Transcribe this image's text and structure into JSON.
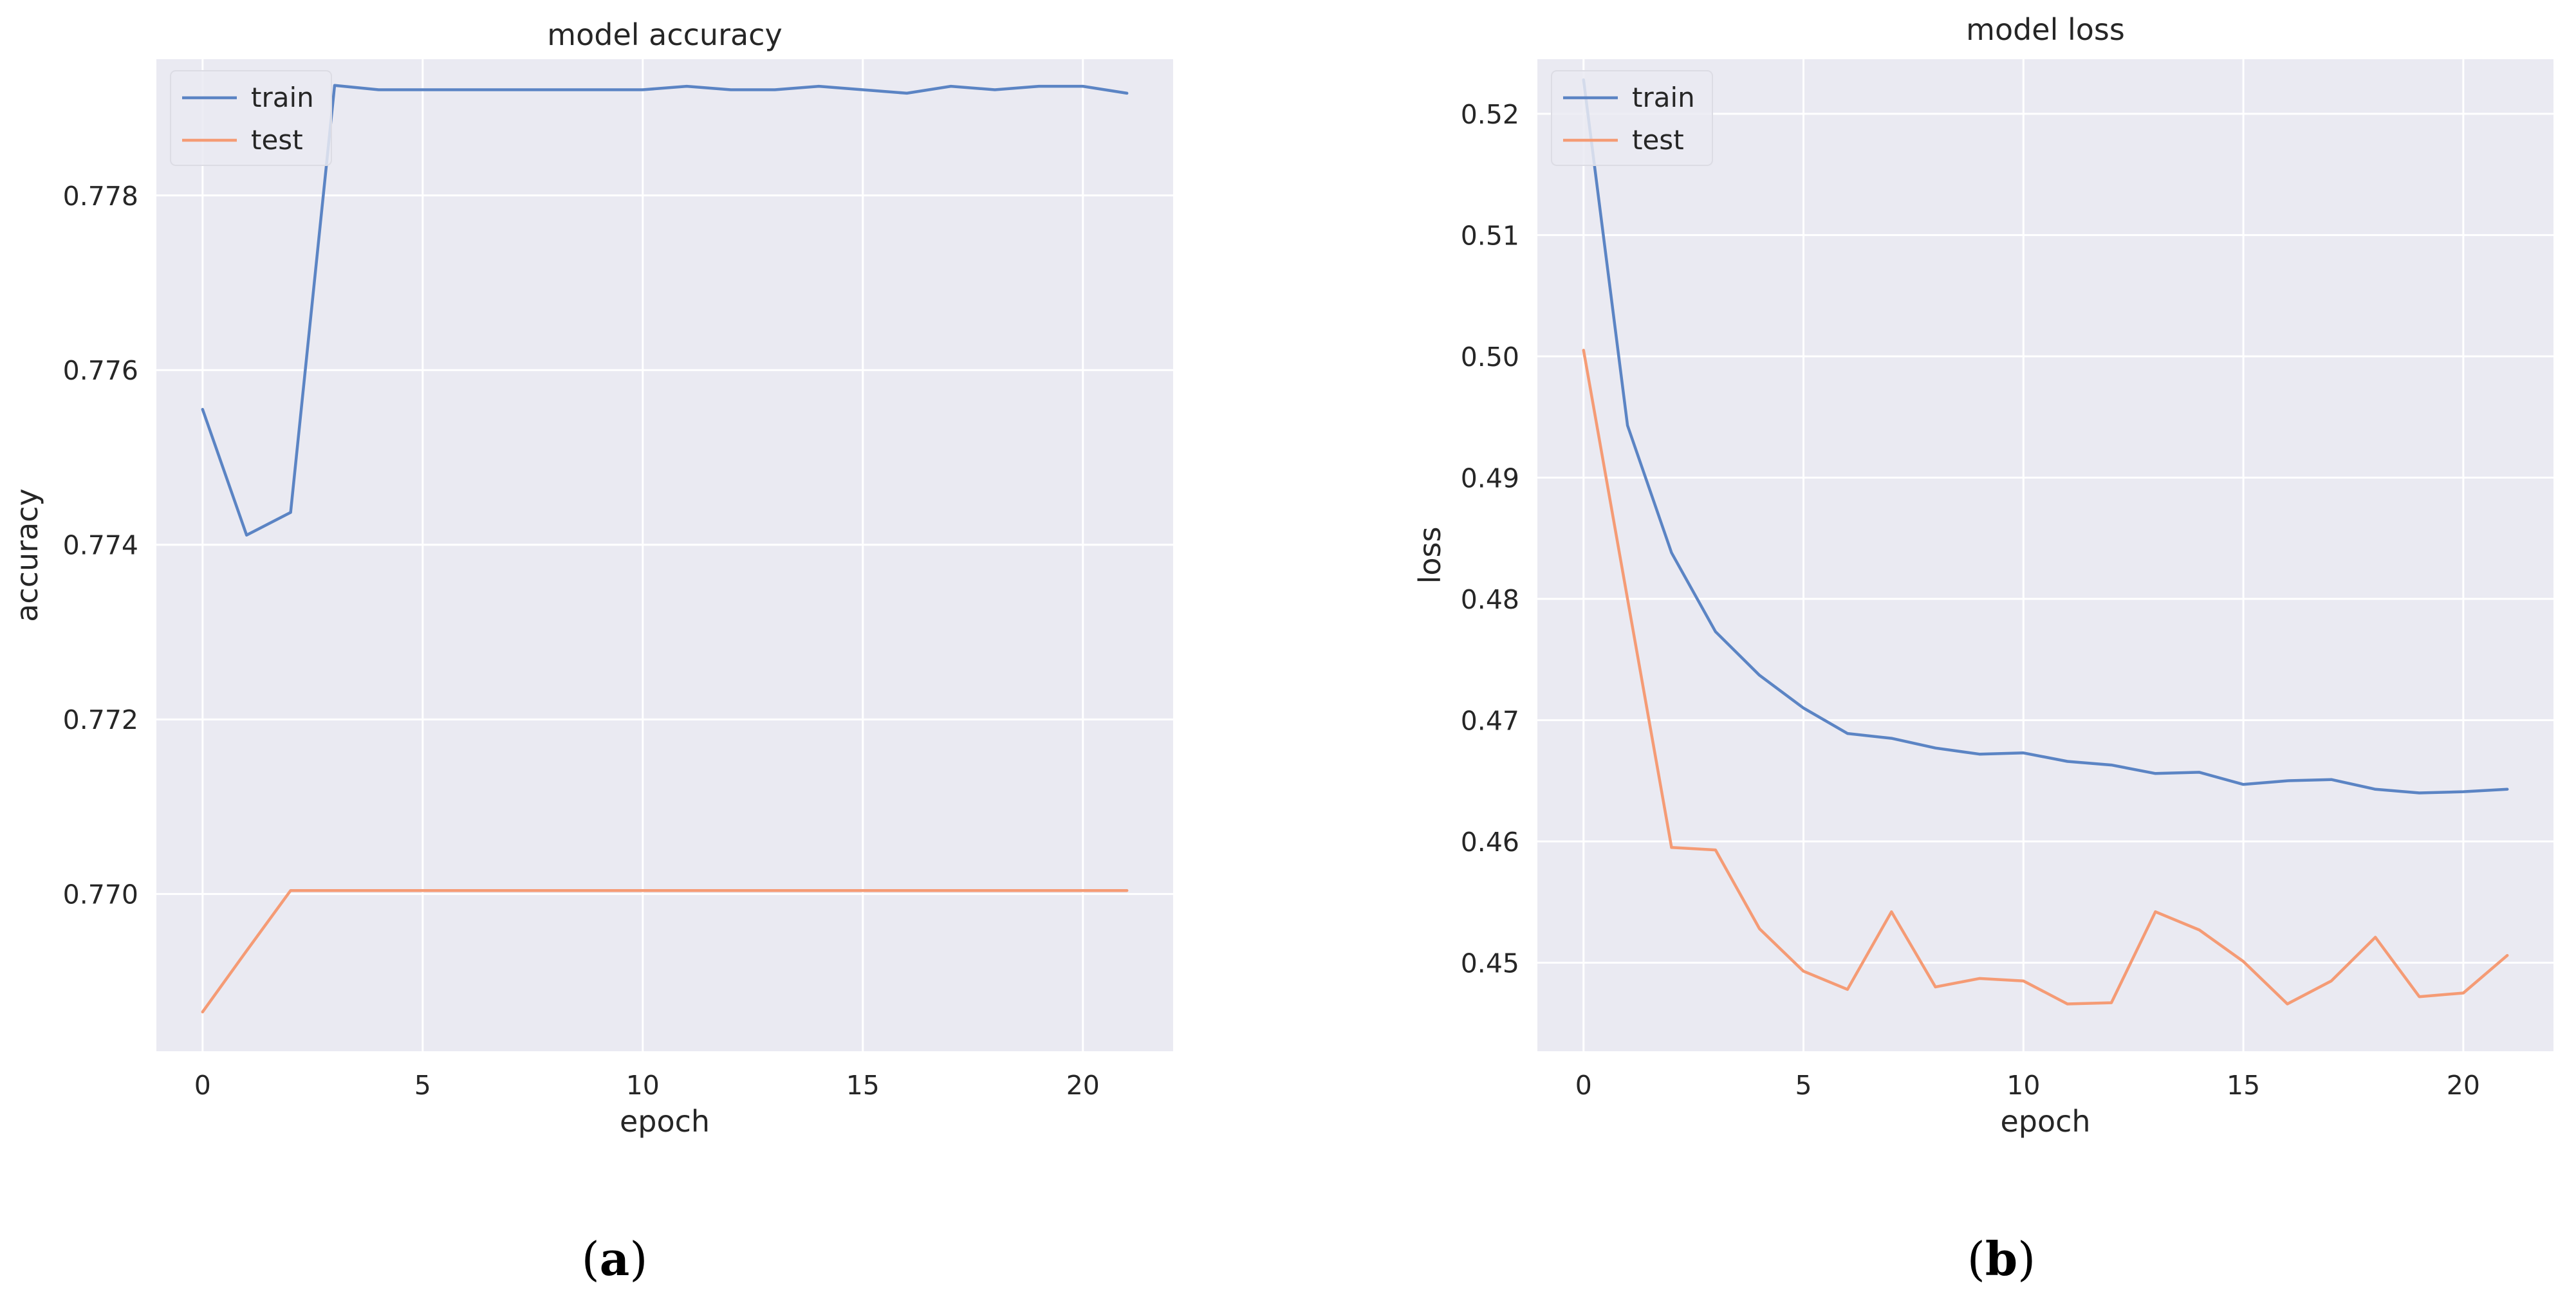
{
  "figure": {
    "caption_a_open": "(",
    "caption_a_letter": "a",
    "caption_a_close": ")",
    "caption_b_open": "(",
    "caption_b_letter": "b",
    "caption_b_close": ")"
  },
  "chart_data": [
    {
      "type": "line",
      "title": "model accuracy",
      "xlabel": "epoch",
      "ylabel": "accuracy",
      "xlim": [
        -1.05,
        22.05
      ],
      "ylim": [
        0.7682,
        0.77956
      ],
      "xticks": [
        0,
        5,
        10,
        15,
        20
      ],
      "xtick_labels": [
        "0",
        "5",
        "10",
        "15",
        "20"
      ],
      "yticks": [
        0.77,
        0.772,
        0.774,
        0.776,
        0.778
      ],
      "ytick_labels": [
        "0.770",
        "0.772",
        "0.774",
        "0.776",
        "0.778"
      ],
      "grid": true,
      "legend_position": "upper left",
      "colors": {
        "train": "#5b84c4",
        "test": "#f59b75",
        "plot_bg": "#eaeaf2",
        "grid": "#ffffff"
      },
      "x": [
        0,
        1,
        2,
        3,
        4,
        5,
        6,
        7,
        8,
        9,
        10,
        11,
        12,
        13,
        14,
        15,
        16,
        17,
        18,
        19,
        20,
        21
      ],
      "series": [
        {
          "name": "train",
          "values": [
            0.77555,
            0.77411,
            0.77437,
            0.77926,
            0.77921,
            0.77921,
            0.77921,
            0.77921,
            0.77921,
            0.77921,
            0.77921,
            0.77925,
            0.77921,
            0.77921,
            0.77925,
            0.77921,
            0.77917,
            0.77925,
            0.77921,
            0.77925,
            0.77925,
            0.77917
          ]
        },
        {
          "name": "test",
          "values": [
            0.76865,
            0.76935,
            0.77004,
            0.77004,
            0.77004,
            0.77004,
            0.77004,
            0.77004,
            0.77004,
            0.77004,
            0.77004,
            0.77004,
            0.77004,
            0.77004,
            0.77004,
            0.77004,
            0.77004,
            0.77004,
            0.77004,
            0.77004,
            0.77004,
            0.77004
          ]
        }
      ]
    },
    {
      "type": "line",
      "title": "model loss",
      "xlabel": "epoch",
      "ylabel": "loss",
      "xlim": [
        -1.05,
        22.05
      ],
      "ylim": [
        0.4427,
        0.5245
      ],
      "xticks": [
        0,
        5,
        10,
        15,
        20
      ],
      "xtick_labels": [
        "0",
        "5",
        "10",
        "15",
        "20"
      ],
      "yticks": [
        0.45,
        0.46,
        0.47,
        0.48,
        0.49,
        0.5,
        0.51,
        0.52
      ],
      "ytick_labels": [
        "0.45",
        "0.46",
        "0.47",
        "0.48",
        "0.49",
        "0.50",
        "0.51",
        "0.52"
      ],
      "grid": true,
      "legend_position": "upper left",
      "colors": {
        "train": "#5b84c4",
        "test": "#f59b75",
        "plot_bg": "#eaeaf2",
        "grid": "#ffffff"
      },
      "x": [
        0,
        1,
        2,
        3,
        4,
        5,
        6,
        7,
        8,
        9,
        10,
        11,
        12,
        13,
        14,
        15,
        16,
        17,
        18,
        19,
        20,
        21
      ],
      "series": [
        {
          "name": "train",
          "values": [
            0.5228,
            0.4943,
            0.4838,
            0.4773,
            0.4737,
            0.471,
            0.4689,
            0.4685,
            0.4677,
            0.4672,
            0.4673,
            0.4666,
            0.4663,
            0.4656,
            0.4657,
            0.4647,
            0.465,
            0.4651,
            0.4643,
            0.464,
            0.4641,
            0.4643
          ]
        },
        {
          "name": "test",
          "values": [
            0.5005,
            0.48,
            0.4595,
            0.4593,
            0.4528,
            0.4493,
            0.4478,
            0.4542,
            0.448,
            0.4487,
            0.4485,
            0.4466,
            0.4467,
            0.4542,
            0.4527,
            0.4501,
            0.4466,
            0.4485,
            0.4521,
            0.4472,
            0.4475,
            0.4506
          ]
        }
      ]
    }
  ]
}
